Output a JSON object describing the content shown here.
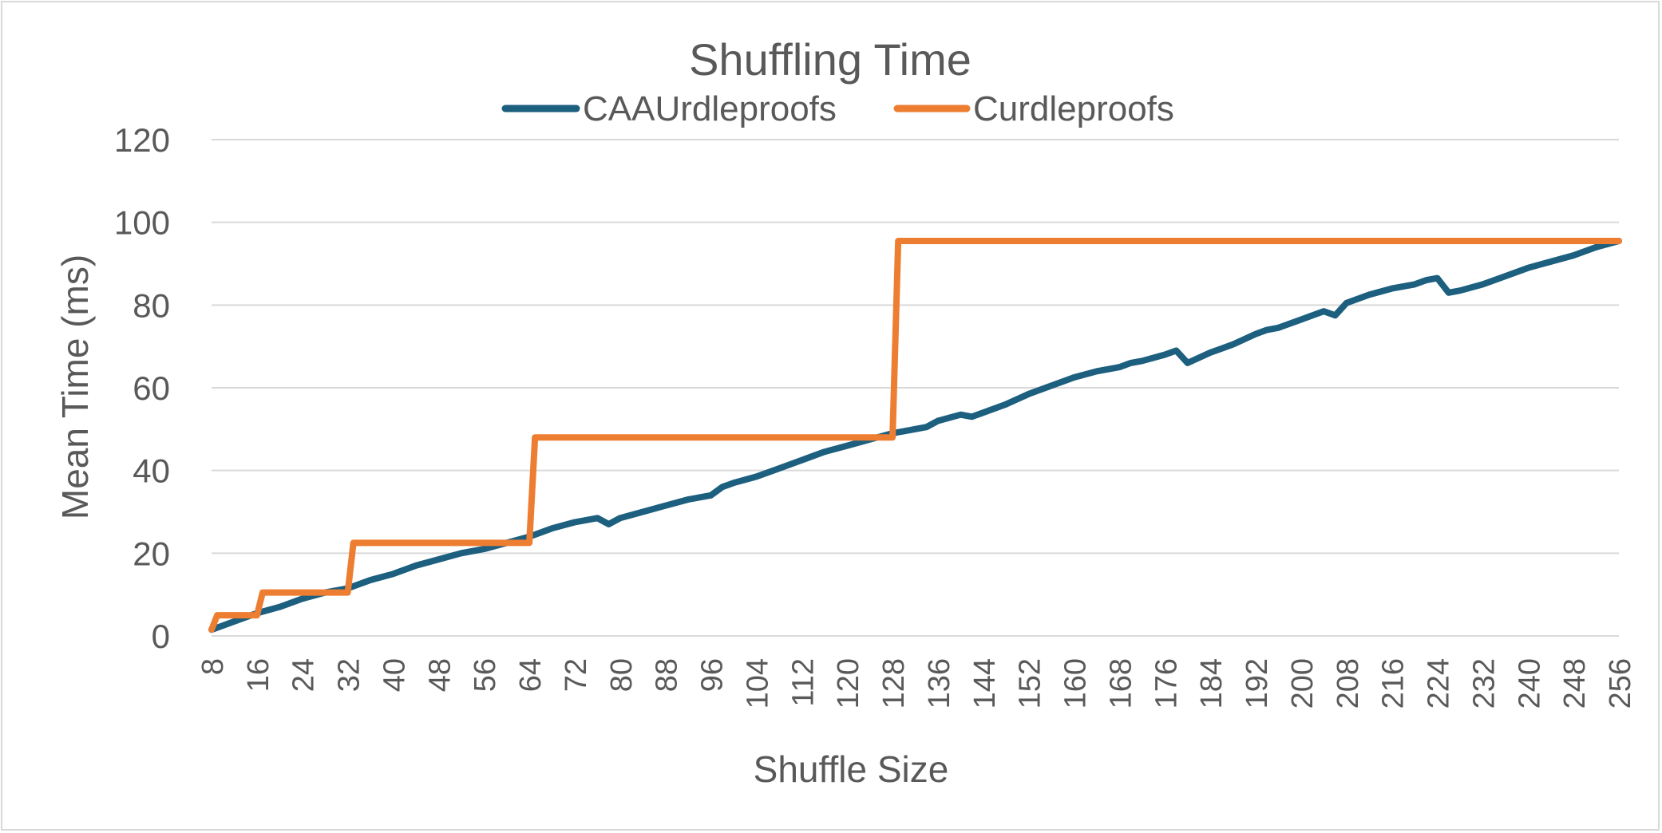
{
  "chart_data": {
    "type": "line",
    "title": "Shuffling Time",
    "xlabel": "Shuffle Size",
    "ylabel": "Mean Time (ms)",
    "ylim": [
      0,
      120
    ],
    "y_ticks": [
      "0",
      "20",
      "40",
      "60",
      "80",
      "100",
      "120"
    ],
    "xlim": [
      8,
      256
    ],
    "x_ticks": [
      "8",
      "16",
      "24",
      "32",
      "40",
      "48",
      "56",
      "64",
      "72",
      "80",
      "88",
      "96",
      "104",
      "112",
      "120",
      "128",
      "136",
      "144",
      "152",
      "160",
      "168",
      "176",
      "184",
      "192",
      "200",
      "208",
      "216",
      "224",
      "232",
      "240",
      "248",
      "256"
    ],
    "grid": true,
    "legend_position": "top",
    "colors": {
      "CAAUrdleproofs": "#1d5f7f",
      "Curdleproofs": "#ed7d31",
      "grid": "#d9d9d9",
      "text": "#595959"
    },
    "series": [
      {
        "name": "CAAUrdleproofs",
        "x": [
          8,
          12,
          16,
          20,
          24,
          28,
          32,
          36,
          40,
          44,
          48,
          52,
          56,
          60,
          64,
          68,
          72,
          76,
          78,
          80,
          84,
          88,
          92,
          96,
          98,
          100,
          104,
          108,
          112,
          116,
          120,
          124,
          128,
          132,
          134,
          136,
          140,
          142,
          144,
          148,
          152,
          156,
          160,
          164,
          168,
          170,
          172,
          176,
          178,
          180,
          184,
          188,
          192,
          194,
          196,
          200,
          204,
          206,
          208,
          212,
          216,
          220,
          222,
          224,
          226,
          228,
          232,
          236,
          240,
          244,
          248,
          252,
          256
        ],
        "y": [
          1.5,
          3.5,
          5.5,
          7,
          9,
          10.5,
          11.5,
          13.5,
          15,
          17,
          18.5,
          20,
          21,
          22.5,
          24,
          26,
          27.5,
          28.5,
          27,
          28.5,
          30,
          31.5,
          33,
          34,
          36,
          37,
          38.5,
          40.5,
          42.5,
          44.5,
          46,
          47.5,
          49,
          50,
          50.5,
          52,
          53.5,
          53,
          54,
          56,
          58.5,
          60.5,
          62.5,
          64,
          65,
          66,
          66.5,
          68,
          69,
          66,
          68.5,
          70.5,
          73,
          74,
          74.5,
          76.5,
          78.5,
          77.5,
          80.5,
          82.5,
          84,
          85,
          86,
          86.5,
          83,
          83.5,
          85,
          87,
          89,
          90.5,
          92,
          94,
          95.5
        ]
      },
      {
        "name": "Curdleproofs",
        "x": [
          8,
          9,
          16,
          17,
          32,
          33,
          64,
          65,
          128,
          129,
          256
        ],
        "y": [
          1.5,
          5,
          5,
          10.5,
          10.5,
          22.5,
          22.5,
          48,
          48,
          95.5,
          95.5
        ]
      }
    ]
  }
}
